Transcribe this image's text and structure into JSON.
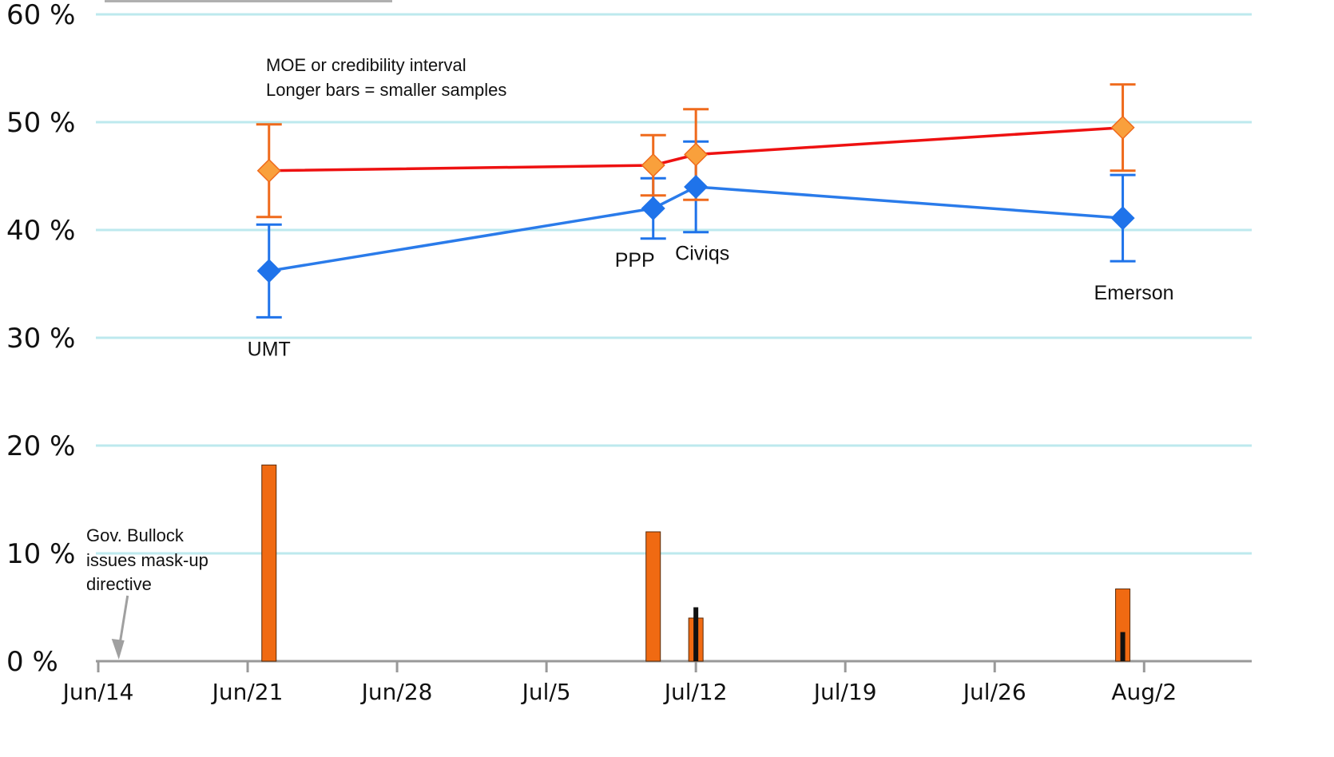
{
  "chart_data": {
    "type": "line",
    "x_axis": {
      "ticks": [
        "Jun/14",
        "Jun/21",
        "Jun/28",
        "Jul/5",
        "Jul/12",
        "Jul/19",
        "Jul/26",
        "Aug/2"
      ]
    },
    "y_axis": {
      "range": [
        0,
        60
      ],
      "ticks": [
        "0 %",
        "10 %",
        "20 %",
        "30 %",
        "40 %",
        "50 %",
        "60 %"
      ]
    },
    "legend_note": "",
    "annotations": {
      "moe_line1": "MOE or credibility interval",
      "moe_line2": "Longer bars = smaller samples",
      "event_line1": "Gov. Bullock",
      "event_line2": "issues mask-up",
      "event_line3": "directive",
      "event_date": "Jun/15"
    },
    "polls": [
      {
        "pollster": "UMT",
        "date": "Jun/22",
        "red": 45.5,
        "red_ci": [
          41.2,
          49.8
        ],
        "blue": 36.2,
        "blue_ci": [
          31.9,
          40.5
        ],
        "gap": 18.2,
        "other": 0
      },
      {
        "pollster": "PPP",
        "date": "Jul/10",
        "red": 46,
        "red_ci": [
          43.2,
          48.8
        ],
        "blue": 42,
        "blue_ci": [
          39.2,
          44.8
        ],
        "gap": 12,
        "other": 0
      },
      {
        "pollster": "Civiqs",
        "date": "Jul/12",
        "red": 47,
        "red_ci": [
          42.8,
          51.2
        ],
        "blue": 44,
        "blue_ci": [
          39.8,
          48.2
        ],
        "gap": 4,
        "other": 5
      },
      {
        "pollster": "Emerson",
        "date": "Aug/1",
        "red": 49.5,
        "red_ci": [
          45.5,
          53.5
        ],
        "blue": 41.1,
        "blue_ci": [
          37.1,
          45.1
        ],
        "gap": 6.7,
        "other": 2.7
      }
    ],
    "colors": {
      "red_line": "#ee1111",
      "red_marker": "#f9a03c",
      "red_error": "#ef6a1c",
      "blue_line": "#2a7bea",
      "blue_marker": "#1f73ea",
      "gridline": "#bde9ee",
      "gap_bar": "#f06a12",
      "other_bar": "#111111",
      "axis": "#999999"
    }
  }
}
